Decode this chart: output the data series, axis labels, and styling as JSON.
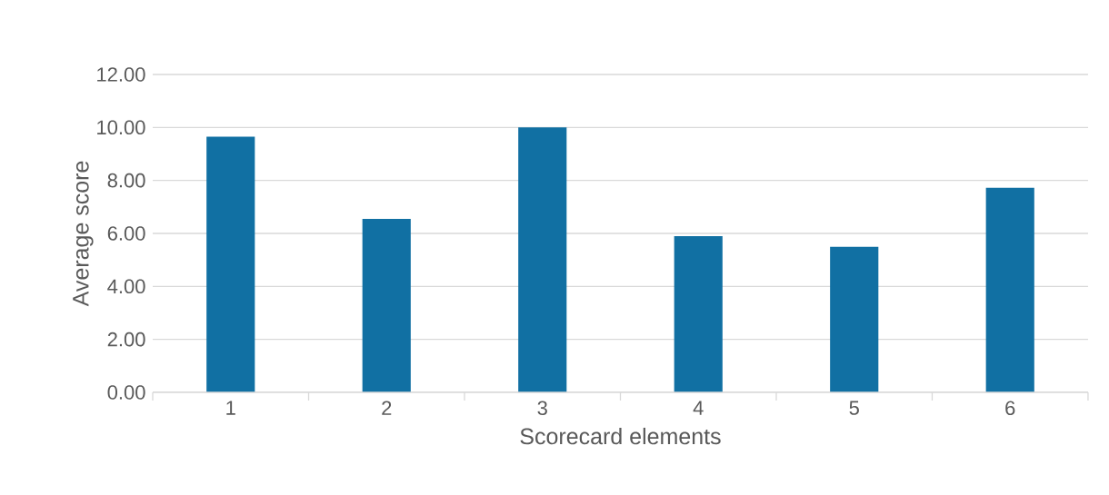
{
  "chart_data": {
    "type": "bar",
    "xlabel": "Scorecard elements",
    "ylabel": "Average score",
    "categories": [
      "1",
      "2",
      "3",
      "4",
      "5",
      "6"
    ],
    "values": [
      9.65,
      6.55,
      10.0,
      5.9,
      5.49,
      7.72
    ],
    "color": "#1170a3",
    "ylim": [
      0,
      12
    ],
    "yticks": [
      {
        "value": 0,
        "label": "0.00"
      },
      {
        "value": 2,
        "label": "2.00"
      },
      {
        "value": 4,
        "label": "4.00"
      },
      {
        "value": 6,
        "label": "6.00"
      },
      {
        "value": 8,
        "label": "8.00"
      },
      {
        "value": 10,
        "label": "10.00"
      },
      {
        "value": 12,
        "label": "12.00"
      }
    ],
    "grid": "y"
  }
}
